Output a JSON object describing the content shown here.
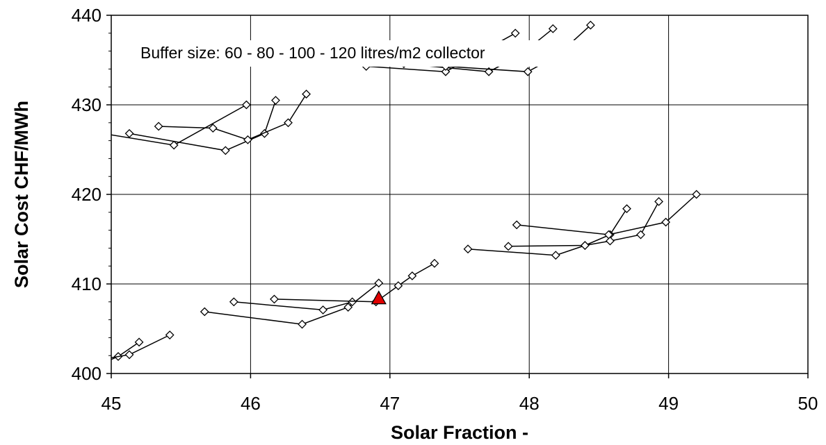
{
  "chart_data": {
    "type": "scatter",
    "xlabel": "Solar Fraction -",
    "ylabel": "Solar Cost CHF/MWh",
    "xlim": [
      45,
      50
    ],
    "ylim": [
      400,
      440
    ],
    "x_ticks": [
      "45",
      "46",
      "47",
      "48",
      "49",
      "50"
    ],
    "y_ticks": [
      "400",
      "410",
      "420",
      "430",
      "440"
    ],
    "grid": true,
    "annotation": "Buffer size: 60 - 80 - 100 - 120 litres/m2 collector",
    "marker_color": "#ffffff",
    "line_color": "#000000",
    "highlight_color": "#e00000",
    "series": [
      {
        "points": [
          [
            44.9,
            400.9
          ],
          [
            45.05,
            401.9
          ],
          [
            45.2,
            403.5
          ]
        ]
      },
      {
        "points": [
          [
            44.9,
            401.5
          ],
          [
            45.13,
            402.1
          ],
          [
            45.42,
            404.3
          ]
        ]
      },
      {
        "points": [
          [
            45.67,
            406.9
          ],
          [
            46.37,
            405.5
          ],
          [
            46.7,
            407.4
          ],
          [
            46.92,
            410.1
          ]
        ]
      },
      {
        "points": [
          [
            45.88,
            408.0
          ],
          [
            46.52,
            407.1
          ],
          [
            46.73,
            408.0
          ]
        ]
      },
      {
        "points": [
          [
            46.17,
            408.3
          ],
          [
            46.9,
            408.0
          ],
          [
            47.06,
            409.8
          ],
          [
            47.16,
            410.9
          ],
          [
            47.32,
            412.3
          ]
        ]
      },
      {
        "points": [
          [
            47.56,
            413.9
          ],
          [
            48.19,
            413.2
          ],
          [
            48.4,
            414.3
          ],
          [
            48.58,
            415.5
          ],
          [
            48.7,
            418.4
          ]
        ]
      },
      {
        "points": [
          [
            47.85,
            414.2
          ],
          [
            48.4,
            414.3
          ],
          [
            48.58,
            414.8
          ],
          [
            48.8,
            415.5
          ],
          [
            48.93,
            419.2
          ]
        ]
      },
      {
        "points": [
          [
            47.91,
            416.6
          ],
          [
            48.57,
            415.5
          ],
          [
            48.98,
            416.9
          ],
          [
            49.2,
            420.0
          ]
        ]
      },
      {
        "points": [
          [
            44.9,
            426.9
          ],
          [
            45.45,
            425.5
          ],
          [
            45.97,
            430.0
          ]
        ]
      },
      {
        "points": [
          [
            45.13,
            426.8
          ],
          [
            45.82,
            424.9
          ],
          [
            46.1,
            426.8
          ],
          [
            46.18,
            430.5
          ]
        ]
      },
      {
        "points": [
          [
            45.34,
            427.6
          ],
          [
            45.73,
            427.4
          ],
          [
            45.98,
            426.1
          ],
          [
            46.27,
            428.0
          ],
          [
            46.4,
            431.2
          ]
        ]
      },
      {
        "points": [
          [
            46.83,
            434.3
          ],
          [
            47.4,
            433.7
          ],
          [
            47.9,
            438.0
          ]
        ]
      },
      {
        "points": [
          [
            47.1,
            434.6
          ],
          [
            47.71,
            433.7
          ],
          [
            47.93,
            435.5
          ],
          [
            48.17,
            438.5
          ]
        ]
      },
      {
        "points": [
          [
            47.4,
            434.3
          ],
          [
            47.99,
            433.7
          ],
          [
            48.2,
            435.5
          ],
          [
            48.44,
            438.9
          ]
        ]
      }
    ],
    "highlight_point": [
      46.92,
      408.4
    ]
  }
}
